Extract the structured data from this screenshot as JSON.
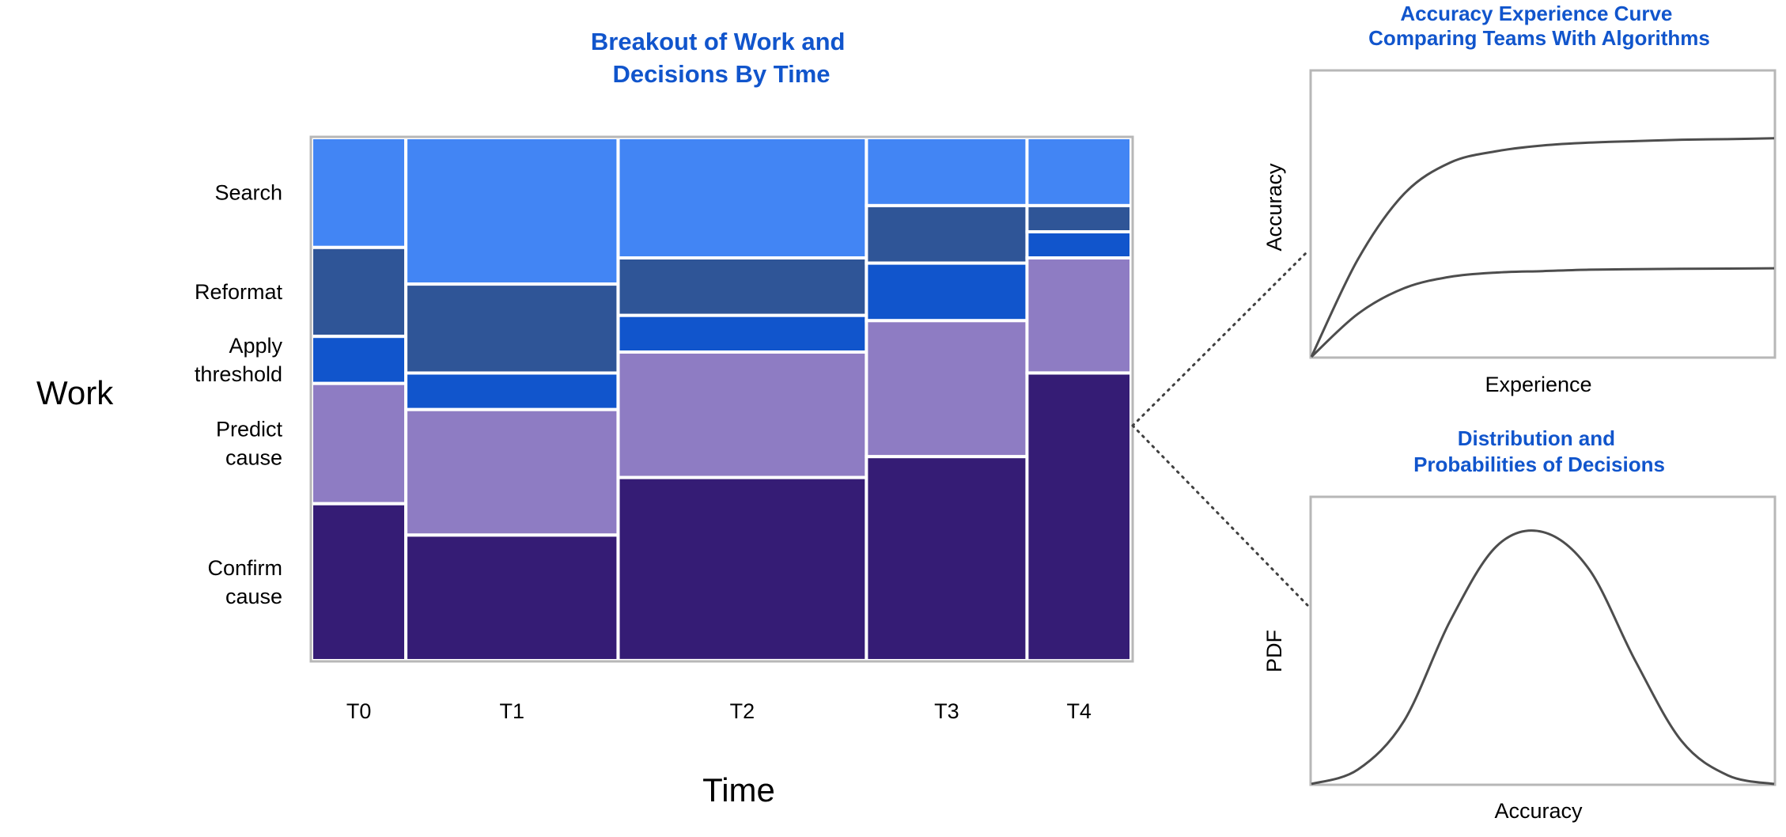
{
  "chart_data": [
    {
      "type": "mosaic",
      "title": [
        "Breakout of Work and",
        "Decisions By Time"
      ],
      "xlabel": "Time",
      "ylabel": "Work",
      "categories": [
        "T0",
        "T1",
        "T2",
        "T3",
        "T4"
      ],
      "category_widths": [
        0.115,
        0.259,
        0.303,
        0.196,
        0.127
      ],
      "row_labels": [
        [
          "Search"
        ],
        [
          "Reformat"
        ],
        [
          "Apply",
          "threshold"
        ],
        [
          "Predict",
          "cause"
        ],
        [
          "Confirm",
          "cause"
        ]
      ],
      "segments": [
        "Search",
        "Reformat",
        "Apply threshold",
        "Predict cause",
        "Confirm cause"
      ],
      "colors": [
        "#4285f4",
        "#2f5597",
        "#1155cc",
        "#8e7cc3",
        "#351c75"
      ],
      "columns": [
        {
          "category": "T0",
          "shares": [
            0.21,
            0.17,
            0.09,
            0.23,
            0.3
          ]
        },
        {
          "category": "T1",
          "shares": [
            0.28,
            0.17,
            0.07,
            0.24,
            0.24
          ]
        },
        {
          "category": "T2",
          "shares": [
            0.23,
            0.11,
            0.07,
            0.24,
            0.35
          ]
        },
        {
          "category": "T3",
          "shares": [
            0.13,
            0.11,
            0.11,
            0.26,
            0.39
          ]
        },
        {
          "category": "T4",
          "shares": [
            0.13,
            0.05,
            0.05,
            0.22,
            0.55
          ]
        }
      ]
    },
    {
      "type": "line",
      "title": [
        "Accuracy Experience Curve",
        "Comparing Teams With Algorithms"
      ],
      "xlabel": "Experience",
      "ylabel": "Accuracy",
      "axis_values": false,
      "series": [
        {
          "x": [
            0,
            0.1,
            0.2,
            0.3,
            0.4,
            0.5,
            0.6,
            0.7,
            0.8,
            0.9,
            1
          ],
          "y": [
            0,
            0.34,
            0.57,
            0.68,
            0.72,
            0.74,
            0.75,
            0.755,
            0.76,
            0.762,
            0.765
          ]
        },
        {
          "x": [
            0,
            0.1,
            0.2,
            0.3,
            0.4,
            0.5,
            0.6,
            0.7,
            0.8,
            0.9,
            1
          ],
          "y": [
            0,
            0.15,
            0.24,
            0.28,
            0.295,
            0.3,
            0.305,
            0.307,
            0.308,
            0.309,
            0.31
          ]
        }
      ]
    },
    {
      "type": "line",
      "title": [
        "Distribution and",
        "Probabilities of Decisions"
      ],
      "xlabel": "Accuracy",
      "ylabel": "PDF",
      "axis_values": false,
      "series": [
        {
          "x": [
            0,
            0.1,
            0.2,
            0.3,
            0.4,
            0.5,
            0.6,
            0.7,
            0.8,
            0.9,
            1
          ],
          "y": [
            0,
            0.05,
            0.22,
            0.57,
            0.83,
            0.88,
            0.75,
            0.43,
            0.15,
            0.03,
            0
          ]
        }
      ]
    }
  ],
  "colors": {
    "title": "#1155cc",
    "frame": "#b7b7b7",
    "curve": "#4d4d4d",
    "cell_border": "#ffffff"
  }
}
